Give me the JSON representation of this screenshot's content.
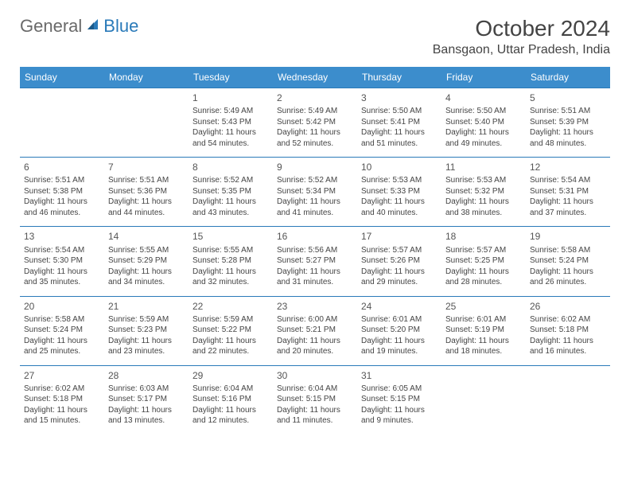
{
  "brand": {
    "word1": "General",
    "word2": "Blue"
  },
  "title": {
    "month": "October 2024",
    "location": "Bansgaon, Uttar Pradesh, India"
  },
  "colors": {
    "header_bg": "#3c8dcc",
    "header_text": "#ffffff",
    "row_border": "#2a7ab9",
    "body_text": "#444444",
    "logo_gray": "#6a6a6a",
    "logo_blue": "#2a7ab9",
    "background": "#ffffff"
  },
  "typography": {
    "title_fontsize_pt": 21,
    "location_fontsize_pt": 12,
    "dayheader_fontsize_pt": 9,
    "cell_fontsize_pt": 7.5,
    "daynum_fontsize_pt": 9
  },
  "calendar": {
    "type": "table",
    "day_headers": [
      "Sunday",
      "Monday",
      "Tuesday",
      "Wednesday",
      "Thursday",
      "Friday",
      "Saturday"
    ],
    "weeks": [
      [
        null,
        null,
        {
          "n": "1",
          "sr": "5:49 AM",
          "ss": "5:43 PM",
          "dl": "11 hours and 54 minutes."
        },
        {
          "n": "2",
          "sr": "5:49 AM",
          "ss": "5:42 PM",
          "dl": "11 hours and 52 minutes."
        },
        {
          "n": "3",
          "sr": "5:50 AM",
          "ss": "5:41 PM",
          "dl": "11 hours and 51 minutes."
        },
        {
          "n": "4",
          "sr": "5:50 AM",
          "ss": "5:40 PM",
          "dl": "11 hours and 49 minutes."
        },
        {
          "n": "5",
          "sr": "5:51 AM",
          "ss": "5:39 PM",
          "dl": "11 hours and 48 minutes."
        }
      ],
      [
        {
          "n": "6",
          "sr": "5:51 AM",
          "ss": "5:38 PM",
          "dl": "11 hours and 46 minutes."
        },
        {
          "n": "7",
          "sr": "5:51 AM",
          "ss": "5:36 PM",
          "dl": "11 hours and 44 minutes."
        },
        {
          "n": "8",
          "sr": "5:52 AM",
          "ss": "5:35 PM",
          "dl": "11 hours and 43 minutes."
        },
        {
          "n": "9",
          "sr": "5:52 AM",
          "ss": "5:34 PM",
          "dl": "11 hours and 41 minutes."
        },
        {
          "n": "10",
          "sr": "5:53 AM",
          "ss": "5:33 PM",
          "dl": "11 hours and 40 minutes."
        },
        {
          "n": "11",
          "sr": "5:53 AM",
          "ss": "5:32 PM",
          "dl": "11 hours and 38 minutes."
        },
        {
          "n": "12",
          "sr": "5:54 AM",
          "ss": "5:31 PM",
          "dl": "11 hours and 37 minutes."
        }
      ],
      [
        {
          "n": "13",
          "sr": "5:54 AM",
          "ss": "5:30 PM",
          "dl": "11 hours and 35 minutes."
        },
        {
          "n": "14",
          "sr": "5:55 AM",
          "ss": "5:29 PM",
          "dl": "11 hours and 34 minutes."
        },
        {
          "n": "15",
          "sr": "5:55 AM",
          "ss": "5:28 PM",
          "dl": "11 hours and 32 minutes."
        },
        {
          "n": "16",
          "sr": "5:56 AM",
          "ss": "5:27 PM",
          "dl": "11 hours and 31 minutes."
        },
        {
          "n": "17",
          "sr": "5:57 AM",
          "ss": "5:26 PM",
          "dl": "11 hours and 29 minutes."
        },
        {
          "n": "18",
          "sr": "5:57 AM",
          "ss": "5:25 PM",
          "dl": "11 hours and 28 minutes."
        },
        {
          "n": "19",
          "sr": "5:58 AM",
          "ss": "5:24 PM",
          "dl": "11 hours and 26 minutes."
        }
      ],
      [
        {
          "n": "20",
          "sr": "5:58 AM",
          "ss": "5:24 PM",
          "dl": "11 hours and 25 minutes."
        },
        {
          "n": "21",
          "sr": "5:59 AM",
          "ss": "5:23 PM",
          "dl": "11 hours and 23 minutes."
        },
        {
          "n": "22",
          "sr": "5:59 AM",
          "ss": "5:22 PM",
          "dl": "11 hours and 22 minutes."
        },
        {
          "n": "23",
          "sr": "6:00 AM",
          "ss": "5:21 PM",
          "dl": "11 hours and 20 minutes."
        },
        {
          "n": "24",
          "sr": "6:01 AM",
          "ss": "5:20 PM",
          "dl": "11 hours and 19 minutes."
        },
        {
          "n": "25",
          "sr": "6:01 AM",
          "ss": "5:19 PM",
          "dl": "11 hours and 18 minutes."
        },
        {
          "n": "26",
          "sr": "6:02 AM",
          "ss": "5:18 PM",
          "dl": "11 hours and 16 minutes."
        }
      ],
      [
        {
          "n": "27",
          "sr": "6:02 AM",
          "ss": "5:18 PM",
          "dl": "11 hours and 15 minutes."
        },
        {
          "n": "28",
          "sr": "6:03 AM",
          "ss": "5:17 PM",
          "dl": "11 hours and 13 minutes."
        },
        {
          "n": "29",
          "sr": "6:04 AM",
          "ss": "5:16 PM",
          "dl": "11 hours and 12 minutes."
        },
        {
          "n": "30",
          "sr": "6:04 AM",
          "ss": "5:15 PM",
          "dl": "11 hours and 11 minutes."
        },
        {
          "n": "31",
          "sr": "6:05 AM",
          "ss": "5:15 PM",
          "dl": "11 hours and 9 minutes."
        },
        null,
        null
      ]
    ],
    "labels": {
      "sunrise": "Sunrise:",
      "sunset": "Sunset:",
      "daylight": "Daylight:"
    }
  }
}
